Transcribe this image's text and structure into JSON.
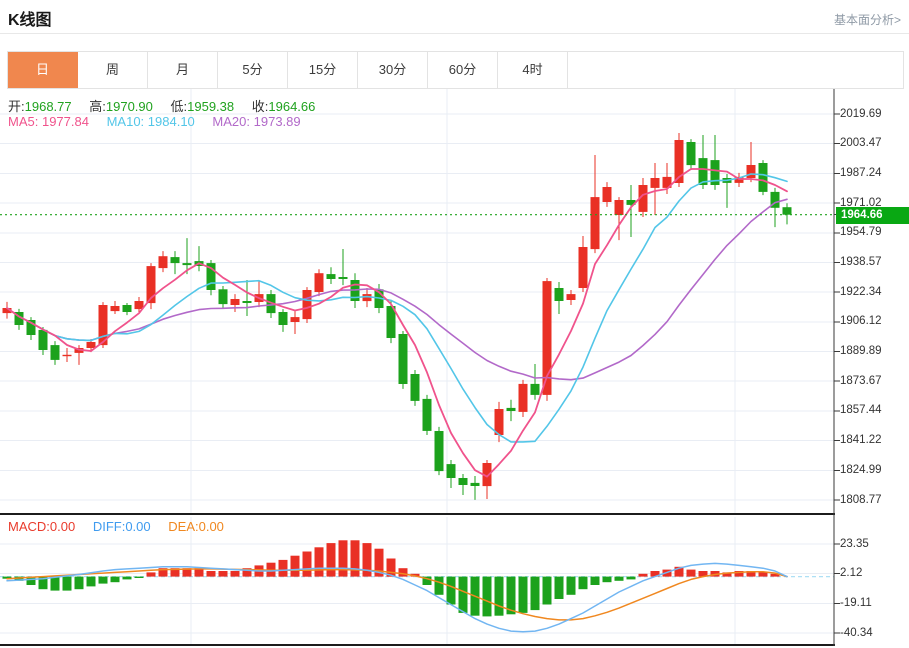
{
  "header": {
    "title": "K线图",
    "link": "基本面分析>"
  },
  "tabs": {
    "items": [
      {
        "label": "日",
        "active": true
      },
      {
        "label": "周",
        "active": false
      },
      {
        "label": "月",
        "active": false
      },
      {
        "label": "5分",
        "active": false
      },
      {
        "label": "15分",
        "active": false
      },
      {
        "label": "30分",
        "active": false
      },
      {
        "label": "60分",
        "active": false
      },
      {
        "label": "4时",
        "active": false
      }
    ]
  },
  "ohlc": {
    "open_label": "开:",
    "open": "1968.77",
    "high_label": "高:",
    "high": "1970.90",
    "low_label": "低:",
    "low": "1959.38",
    "close_label": "收:",
    "close": "1964.66"
  },
  "ma_row": {
    "ma5_label": "MA5:",
    "ma5": "1977.84",
    "ma10_label": "MA10:",
    "ma10": "1984.10",
    "ma20_label": "MA20:",
    "ma20": "1973.89"
  },
  "macd_row": {
    "macd_label": "MACD:",
    "macd": "0.00",
    "diff_label": "DIFF:",
    "diff": "0.00",
    "dea_label": "DEA:",
    "dea": "0.00"
  },
  "price_badge": "1964.66",
  "colors": {
    "up_red": "#e93025",
    "down_green": "#1ca21c",
    "text_green": "#21a21f",
    "ma5_pink": "#f0538c",
    "ma10_cyan": "#53c6e8",
    "ma20_purple": "#b269c9",
    "diff_blue": "#72b6f2",
    "diff_text_blue": "#3f9bef",
    "dea_orange": "#f08820",
    "macd_text_red": "#e93b2c",
    "tab_orange": "#f0874e",
    "badge_green": "#09a813",
    "grid": "#e9edf4",
    "axis_dark": "#3a3a3a",
    "zero_dash_blue": "#aee0f5"
  },
  "chart_data": [
    {
      "type": "candlestick",
      "title": "K线图",
      "legend": [
        "MA5",
        "MA10",
        "MA20"
      ],
      "ma_periods": [
        5,
        10,
        20
      ],
      "ma_latest": {
        "MA5": 1977.84,
        "MA10": 1984.1,
        "MA20": 1973.89
      },
      "y_axis_ticks": [
        "2019.69",
        "2003.47",
        "1987.24",
        "1971.02",
        "1954.79",
        "1938.57",
        "1922.34",
        "1906.12",
        "1889.89",
        "1873.67",
        "1857.44",
        "1841.22",
        "1824.99",
        "1808.77"
      ],
      "y_range": [
        1808.77,
        2019.69
      ],
      "current_price": 1964.66,
      "grid": true,
      "candles_ohlc": [
        [
          1910.9,
          1917.0,
          1907.9,
          1913.7
        ],
        [
          1911.5,
          1913.2,
          1901.7,
          1904.4
        ],
        [
          1907.1,
          1908.7,
          1896.2,
          1898.9
        ],
        [
          1901.7,
          1903.3,
          1888.0,
          1890.7
        ],
        [
          1893.4,
          1895.6,
          1882.6,
          1885.3
        ],
        [
          1887.5,
          1891.8,
          1884.2,
          1888.1
        ],
        [
          1889.1,
          1893.4,
          1882.6,
          1891.8
        ],
        [
          1891.8,
          1896.7,
          1889.6,
          1895.1
        ],
        [
          1893.4,
          1916.9,
          1891.8,
          1915.3
        ],
        [
          1912.0,
          1917.5,
          1910.4,
          1914.8
        ],
        [
          1915.3,
          1916.4,
          1909.8,
          1911.5
        ],
        [
          1913.1,
          1919.7,
          1911.5,
          1917.5
        ],
        [
          1916.4,
          1938.2,
          1913.1,
          1936.6
        ],
        [
          1935.5,
          1944.8,
          1933.3,
          1942.0
        ],
        [
          1941.5,
          1944.8,
          1932.2,
          1938.2
        ],
        [
          1938.2,
          1951.9,
          1932.2,
          1937.1
        ],
        [
          1939.3,
          1947.5,
          1933.8,
          1936.6
        ],
        [
          1938.2,
          1939.9,
          1920.7,
          1923.5
        ],
        [
          1923.9,
          1925.7,
          1913.7,
          1915.8
        ],
        [
          1915.3,
          1921.3,
          1911.5,
          1918.6
        ],
        [
          1917.5,
          1929.0,
          1909.3,
          1916.4
        ],
        [
          1917.0,
          1928.4,
          1914.2,
          1921.3
        ],
        [
          1921.3,
          1923.5,
          1908.2,
          1910.9
        ],
        [
          1911.5,
          1913.1,
          1900.6,
          1904.4
        ],
        [
          1906.0,
          1912.0,
          1899.5,
          1908.7
        ],
        [
          1907.6,
          1925.1,
          1905.5,
          1923.5
        ],
        [
          1922.4,
          1934.9,
          1920.2,
          1932.7
        ],
        [
          1932.2,
          1936.0,
          1926.8,
          1929.5
        ],
        [
          1930.6,
          1945.9,
          1926.2,
          1929.5
        ],
        [
          1929.0,
          1932.7,
          1913.7,
          1917.5
        ],
        [
          1917.5,
          1924.6,
          1914.2,
          1921.3
        ],
        [
          1923.9,
          1926.8,
          1910.9,
          1913.7
        ],
        [
          1914.8,
          1917.5,
          1894.5,
          1897.3
        ],
        [
          1899.5,
          1901.1,
          1869.5,
          1872.2
        ],
        [
          1877.6,
          1879.8,
          1860.2,
          1862.9
        ],
        [
          1864.0,
          1866.2,
          1844.3,
          1846.5
        ],
        [
          1846.5,
          1848.7,
          1822.4,
          1824.6
        ],
        [
          1828.4,
          1830.6,
          1815.3,
          1820.8
        ],
        [
          1820.8,
          1823.0,
          1811.5,
          1817.0
        ],
        [
          1818.1,
          1821.9,
          1808.8,
          1816.4
        ],
        [
          1816.4,
          1830.6,
          1809.3,
          1829.0
        ],
        [
          1844.3,
          1862.4,
          1840.4,
          1858.5
        ],
        [
          1859.1,
          1863.5,
          1851.9,
          1857.4
        ],
        [
          1856.9,
          1874.4,
          1854.1,
          1872.2
        ],
        [
          1872.2,
          1883.1,
          1863.5,
          1866.2
        ],
        [
          1866.2,
          1930.1,
          1862.9,
          1928.4
        ],
        [
          1924.6,
          1927.9,
          1910.4,
          1917.5
        ],
        [
          1918.1,
          1923.5,
          1915.3,
          1921.3
        ],
        [
          1924.6,
          1953.0,
          1922.4,
          1947.0
        ],
        [
          1945.9,
          1997.3,
          1943.7,
          1974.3
        ],
        [
          1971.6,
          1982.5,
          1968.9,
          1979.8
        ],
        [
          1964.5,
          1974.3,
          1950.8,
          1972.7
        ],
        [
          1972.7,
          1980.9,
          1952.5,
          1970.0
        ],
        [
          1966.2,
          1984.7,
          1963.4,
          1980.9
        ],
        [
          1979.3,
          1992.9,
          1964.5,
          1984.7
        ],
        [
          1979.3,
          1992.9,
          1976.0,
          1985.3
        ],
        [
          1982.0,
          2009.3,
          1979.8,
          2005.5
        ],
        [
          2004.4,
          2006.0,
          1989.1,
          1991.8
        ],
        [
          1995.6,
          2008.2,
          1978.7,
          1980.9
        ],
        [
          1994.5,
          2008.2,
          1978.2,
          1980.9
        ],
        [
          1984.7,
          1986.9,
          1968.4,
          1982.0
        ],
        [
          1982.0,
          1987.5,
          1979.8,
          1985.3
        ],
        [
          1984.7,
          2004.4,
          1982.5,
          1991.8
        ],
        [
          1992.9,
          1994.5,
          1975.4,
          1977.1
        ],
        [
          1977.1,
          1979.3,
          1957.9,
          1968.4
        ],
        [
          1968.77,
          1970.9,
          1959.38,
          1964.66
        ]
      ]
    },
    {
      "type": "bar",
      "name": "MACD",
      "legend": [
        "MACD",
        "DIFF",
        "DEA"
      ],
      "latest": {
        "MACD": 0.0,
        "DIFF": 0.0,
        "DEA": 0.0
      },
      "y_axis_ticks": [
        "23.35",
        "2.12",
        "-19.11",
        "-40.34"
      ],
      "y_range": [
        -40.34,
        23.35
      ],
      "grid": true,
      "hist": [
        -1.5,
        -3,
        -6,
        -9,
        -10,
        -10,
        -9,
        -7,
        -5,
        -4,
        -2,
        -1,
        3,
        6,
        6,
        6,
        6,
        4,
        4,
        4,
        6,
        8,
        10,
        12,
        15,
        18,
        21,
        24,
        26,
        26,
        24,
        20,
        13,
        6,
        2,
        -6,
        -13,
        -20,
        -26,
        -28,
        -28.5,
        -28,
        -27,
        -26,
        -24,
        -20,
        -16,
        -13,
        -9,
        -6,
        -4,
        -3,
        -2,
        2,
        4,
        5,
        7,
        5,
        4,
        4,
        3,
        4,
        4,
        3,
        2,
        0
      ],
      "diff_line": [
        -3,
        -2.5,
        -2,
        -1.5,
        -0.5,
        0.5,
        1.5,
        2.8,
        4,
        5,
        5.5,
        6,
        6.5,
        7,
        7,
        7,
        6.5,
        6,
        5.5,
        5,
        4.5,
        4,
        4,
        4.5,
        5,
        5.5,
        6,
        6,
        6,
        5.5,
        4.5,
        3,
        1,
        -2,
        -6,
        -10,
        -15,
        -20,
        -25,
        -30,
        -34,
        -37,
        -39,
        -39.5,
        -39,
        -37,
        -34,
        -30,
        -26,
        -21,
        -16,
        -11,
        -7,
        -3,
        0,
        3,
        6,
        8,
        9,
        9.5,
        9,
        8,
        7,
        6,
        4,
        0
      ],
      "dea_line": [
        -1.5,
        -1,
        -0.5,
        0,
        0.5,
        1,
        1.5,
        2,
        2.5,
        3,
        3.5,
        4,
        4.5,
        5,
        5.2,
        5.4,
        5.5,
        5.5,
        5.4,
        5.2,
        5,
        4.8,
        4.6,
        4.5,
        4.5,
        4.6,
        4.8,
        5,
        5,
        4.8,
        4.5,
        4,
        3,
        2,
        0.5,
        -1.5,
        -4,
        -7,
        -10.5,
        -14,
        -17.5,
        -21,
        -24,
        -26.5,
        -28.5,
        -30,
        -31,
        -31,
        -30,
        -28,
        -25.5,
        -22.5,
        -19,
        -15.5,
        -12,
        -8.5,
        -5,
        -2,
        0,
        1.5,
        2.5,
        3,
        3.5,
        3.5,
        2.5,
        0
      ]
    }
  ]
}
